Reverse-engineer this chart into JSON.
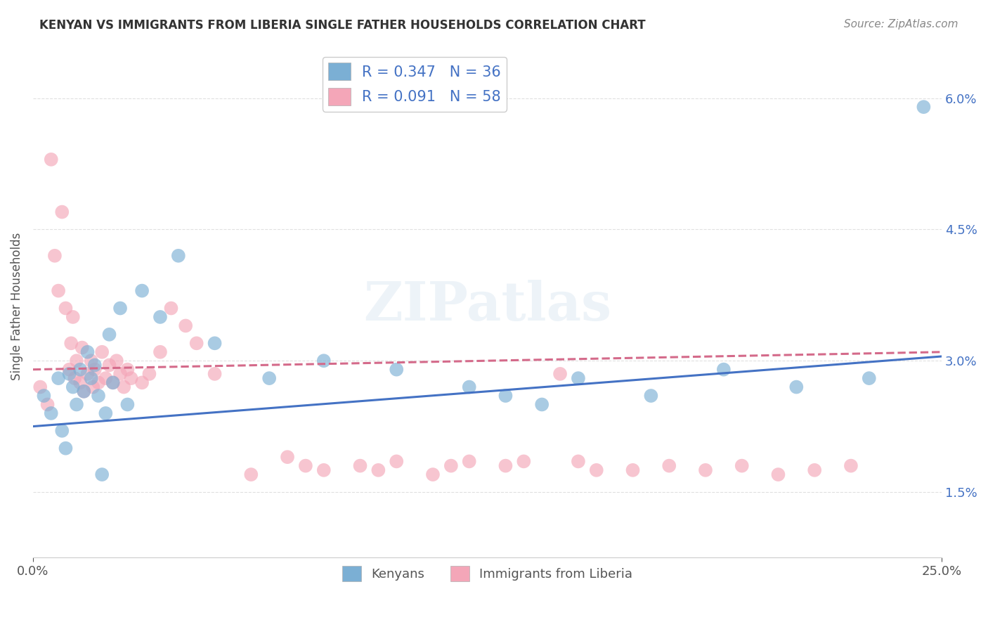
{
  "title": "KENYAN VS IMMIGRANTS FROM LIBERIA SINGLE FATHER HOUSEHOLDS CORRELATION CHART",
  "source": "Source: ZipAtlas.com",
  "ylabel": "Single Father Households",
  "xlim": [
    0.0,
    25.0
  ],
  "ylim": [
    0.75,
    6.5
  ],
  "yticks": [
    1.5,
    3.0,
    4.5,
    6.0
  ],
  "xticks": [
    0.0,
    25.0
  ],
  "xticklabels": [
    "0.0%",
    "25.0%"
  ],
  "yticklabels": [
    "1.5%",
    "3.0%",
    "4.5%",
    "6.0%"
  ],
  "kenyan_color": "#7bafd4",
  "liberia_color": "#f4a6b8",
  "kenyan_line_color": "#4472c4",
  "liberia_line_color": "#d46a8a",
  "kenyan_R": 0.347,
  "kenyan_N": 36,
  "liberia_R": 0.091,
  "liberia_N": 58,
  "legend_label_kenyan": "Kenyans",
  "legend_label_liberia": "Immigrants from Liberia",
  "kenyan_x": [
    0.3,
    0.5,
    0.7,
    0.8,
    0.9,
    1.0,
    1.1,
    1.2,
    1.3,
    1.4,
    1.5,
    1.6,
    1.7,
    1.8,
    1.9,
    2.0,
    2.1,
    2.2,
    2.4,
    2.6,
    3.0,
    3.5,
    4.0,
    5.0,
    6.5,
    8.0,
    10.0,
    12.0,
    13.0,
    14.0,
    15.0,
    17.0,
    19.0,
    21.0,
    23.0,
    24.5
  ],
  "kenyan_y": [
    2.6,
    2.4,
    2.8,
    2.2,
    2.0,
    2.85,
    2.7,
    2.5,
    2.9,
    2.65,
    3.1,
    2.8,
    2.95,
    2.6,
    1.7,
    2.4,
    3.3,
    2.75,
    3.6,
    2.5,
    3.8,
    3.5,
    4.2,
    3.2,
    2.8,
    3.0,
    2.9,
    2.7,
    2.6,
    2.5,
    2.8,
    2.6,
    2.9,
    2.7,
    2.8,
    5.9
  ],
  "liberia_x": [
    0.2,
    0.4,
    0.5,
    0.6,
    0.7,
    0.8,
    0.9,
    1.0,
    1.05,
    1.1,
    1.15,
    1.2,
    1.3,
    1.35,
    1.4,
    1.5,
    1.6,
    1.65,
    1.7,
    1.8,
    1.9,
    2.0,
    2.1,
    2.2,
    2.3,
    2.4,
    2.5,
    2.6,
    2.7,
    3.0,
    3.2,
    3.5,
    3.8,
    4.5,
    5.0,
    6.0,
    7.0,
    8.0,
    9.0,
    10.0,
    11.0,
    12.0,
    13.0,
    14.5,
    15.0,
    16.5,
    4.2,
    7.5,
    9.5,
    11.5,
    13.5,
    15.5,
    17.5,
    18.5,
    19.5,
    20.5,
    21.5,
    22.5
  ],
  "liberia_y": [
    2.7,
    2.5,
    5.3,
    4.2,
    3.8,
    4.7,
    3.6,
    2.9,
    3.2,
    3.5,
    2.8,
    3.0,
    2.75,
    3.15,
    2.65,
    2.85,
    3.0,
    2.7,
    2.9,
    2.75,
    3.1,
    2.8,
    2.95,
    2.75,
    3.0,
    2.85,
    2.7,
    2.9,
    2.8,
    2.75,
    2.85,
    3.1,
    3.6,
    3.2,
    2.85,
    1.7,
    1.9,
    1.75,
    1.8,
    1.85,
    1.7,
    1.85,
    1.8,
    2.85,
    1.85,
    1.75,
    3.4,
    1.8,
    1.75,
    1.8,
    1.85,
    1.75,
    1.8,
    1.75,
    1.8,
    1.7,
    1.75,
    1.8
  ],
  "kenyan_trend_x": [
    0.0,
    25.0
  ],
  "kenyan_trend_y": [
    2.25,
    3.05
  ],
  "liberia_trend_x": [
    0.0,
    25.0
  ],
  "liberia_trend_y": [
    2.9,
    3.1
  ],
  "watermark": "ZIPatlas",
  "background_color": "#ffffff",
  "grid_color": "#dddddd",
  "title_color": "#333333",
  "source_color": "#888888",
  "axis_label_color": "#555555",
  "tick_color_y": "#4472c4",
  "tick_color_x": "#555555",
  "legend_text_color": "#4472c4"
}
